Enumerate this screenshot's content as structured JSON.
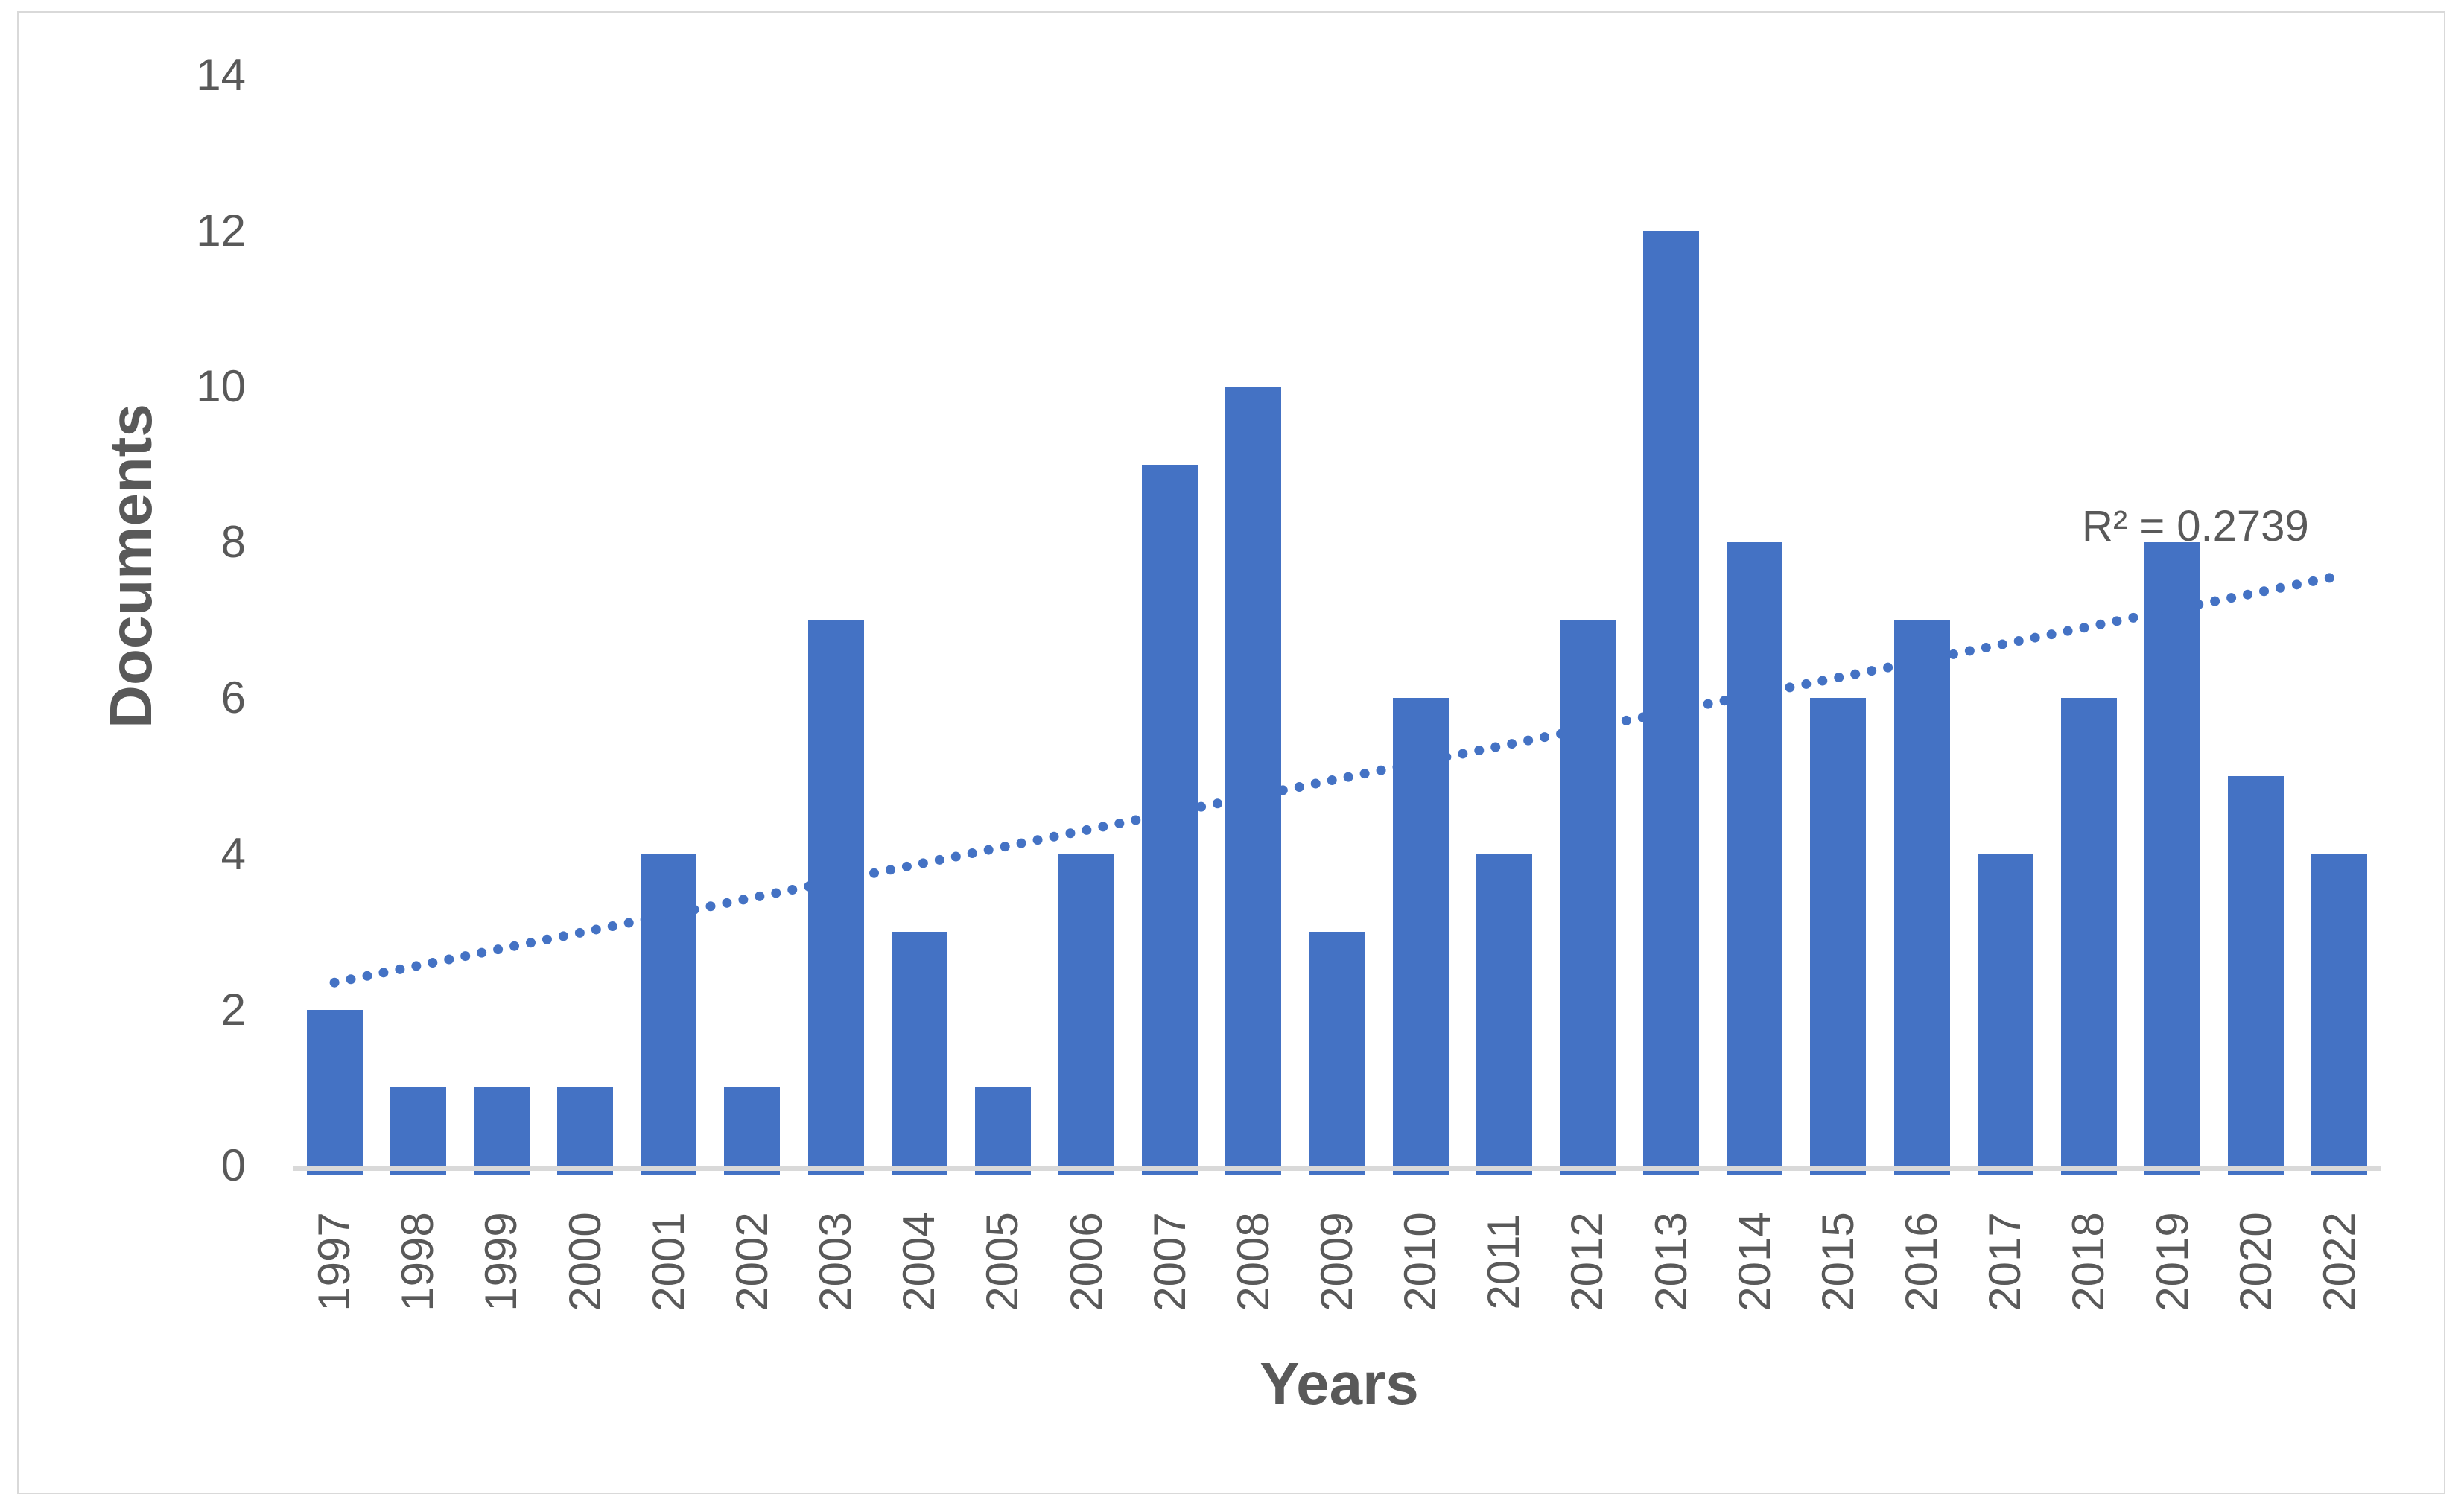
{
  "chart_data": {
    "type": "bar",
    "title": "",
    "categories": [
      "1997",
      "1998",
      "1999",
      "2000",
      "2001",
      "2002",
      "2003",
      "2004",
      "2005",
      "2006",
      "2007",
      "2008",
      "2009",
      "2010",
      "2011",
      "2012",
      "2013",
      "2014",
      "2015",
      "2016",
      "2017",
      "2018",
      "2019",
      "2020",
      "2022"
    ],
    "values": [
      2,
      1,
      1,
      1,
      4,
      1,
      7,
      3,
      1,
      4,
      9,
      10,
      3,
      6,
      4,
      7,
      12,
      8,
      6,
      7,
      4,
      6,
      8,
      5,
      4
    ],
    "xlabel": "Years",
    "ylabel": "Documents",
    "ylim": [
      0,
      14
    ],
    "ytick_step": 2,
    "grid": false,
    "legend": "none",
    "bar_color": "#4472C4",
    "axis_line_color": "#D9D9D9",
    "tick_text_color": "#595959",
    "trendline": {
      "type": "linear",
      "style": "dotted",
      "color": "#4472C4",
      "start_value": 2.35,
      "end_value": 7.57,
      "r2_label": "R² = 0.2739"
    }
  }
}
